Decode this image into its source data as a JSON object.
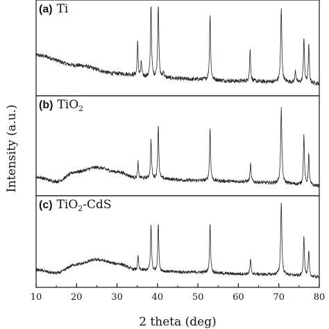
{
  "chart_data": {
    "type": "line",
    "xlabel": "2 theta (deg)",
    "ylabel": "Intensity (a.u.)",
    "xlim": [
      10,
      80
    ],
    "xticks": [
      10,
      20,
      30,
      40,
      50,
      60,
      70,
      80
    ],
    "grid": false,
    "legend": "none",
    "line_color": "#222222",
    "panels": [
      {
        "label": "(a)",
        "name": "Ti",
        "name_sub": "",
        "name_suffix": "",
        "background": [
          [
            10,
            0.42
          ],
          [
            20,
            0.3
          ],
          [
            30,
            0.2
          ],
          [
            40,
            0.15
          ],
          [
            50,
            0.13
          ],
          [
            60,
            0.11
          ],
          [
            70,
            0.1
          ],
          [
            80,
            0.08
          ]
        ],
        "noise": 0.025,
        "peaks": [
          [
            35.1,
            0.42,
            0.25
          ],
          [
            36.0,
            0.18,
            0.28
          ],
          [
            38.4,
            0.9,
            0.3
          ],
          [
            40.2,
            0.95,
            0.3
          ],
          [
            41.5,
            0.08,
            0.3
          ],
          [
            53.0,
            0.8,
            0.3
          ],
          [
            62.9,
            0.38,
            0.3
          ],
          [
            70.6,
            0.88,
            0.35
          ],
          [
            74.1,
            0.15,
            0.3
          ],
          [
            76.2,
            0.55,
            0.3
          ],
          [
            77.4,
            0.45,
            0.3
          ]
        ]
      },
      {
        "label": "(b)",
        "name": "TiO",
        "name_sub": "2",
        "name_suffix": "",
        "background": [
          [
            10,
            0.15
          ],
          [
            15,
            0.1
          ],
          [
            20,
            0.21
          ],
          [
            25,
            0.26
          ],
          [
            30,
            0.21
          ],
          [
            35,
            0.14
          ],
          [
            40,
            0.13
          ],
          [
            50,
            0.11
          ],
          [
            60,
            0.1
          ],
          [
            70,
            0.08
          ],
          [
            80,
            0.05
          ]
        ],
        "noise": 0.02,
        "peaks": [
          [
            35.2,
            0.18,
            0.25
          ],
          [
            38.4,
            0.45,
            0.3
          ],
          [
            40.2,
            0.62,
            0.3
          ],
          [
            53.0,
            0.6,
            0.3
          ],
          [
            63.0,
            0.2,
            0.3
          ],
          [
            70.6,
            0.85,
            0.35
          ],
          [
            76.2,
            0.58,
            0.3
          ],
          [
            77.4,
            0.35,
            0.3
          ]
        ]
      },
      {
        "label": "(c)",
        "name": "TiO",
        "name_sub": "2",
        "name_suffix": "-CdS",
        "background": [
          [
            10,
            0.15
          ],
          [
            15,
            0.11
          ],
          [
            20,
            0.22
          ],
          [
            25,
            0.28
          ],
          [
            30,
            0.23
          ],
          [
            35,
            0.15
          ],
          [
            40,
            0.13
          ],
          [
            50,
            0.12
          ],
          [
            60,
            0.1
          ],
          [
            70,
            0.09
          ],
          [
            80,
            0.06
          ]
        ],
        "noise": 0.02,
        "peaks": [
          [
            35.2,
            0.18,
            0.25
          ],
          [
            38.4,
            0.58,
            0.3
          ],
          [
            40.2,
            0.62,
            0.3
          ],
          [
            53.0,
            0.62,
            0.3
          ],
          [
            63.0,
            0.18,
            0.3
          ],
          [
            70.6,
            0.92,
            0.35
          ],
          [
            76.2,
            0.52,
            0.3
          ],
          [
            77.4,
            0.32,
            0.3
          ]
        ]
      }
    ]
  }
}
